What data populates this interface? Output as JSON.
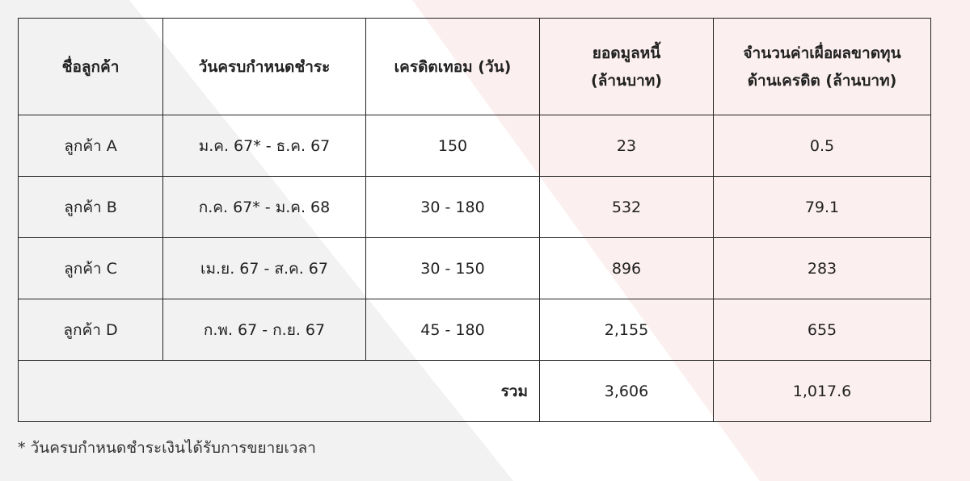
{
  "table": {
    "headers": [
      "ชื่อลูกค้า",
      "วันครบกำหนดชำระ",
      "เครดิตเทอม (วัน)",
      "ยอดมูลหนี้\n(ล้านบาท)",
      "จำนวนค่าเผื่อผลขาดทุน\nด้านเครดิต (ล้านบาท)"
    ],
    "rows": [
      [
        "ลูกค้า A",
        "ม.ค. 67* - ธ.ค. 67",
        "150",
        "23",
        "0.5"
      ],
      [
        "ลูกค้า B",
        "ก.ค. 67* - ม.ค. 68",
        "30 - 180",
        "532",
        "79.1"
      ],
      [
        "ลูกค้า C",
        "เม.ย. 67 - ส.ค. 67",
        "30 - 150",
        "896",
        "283"
      ],
      [
        "ลูกค้า D",
        "ก.พ. 67 - ก.ย. 67",
        "45 - 180",
        "2,155",
        "655"
      ]
    ],
    "total": {
      "label": "รวม",
      "debt": "3,606",
      "allowance": "1,017.6"
    }
  },
  "footnote": "* วันครบกำหนดชำระเงินได้รับการขยายเวลา",
  "colors": {
    "left_background": "#f2f2f2",
    "right_background": "#fcefef",
    "border": "#222222"
  }
}
